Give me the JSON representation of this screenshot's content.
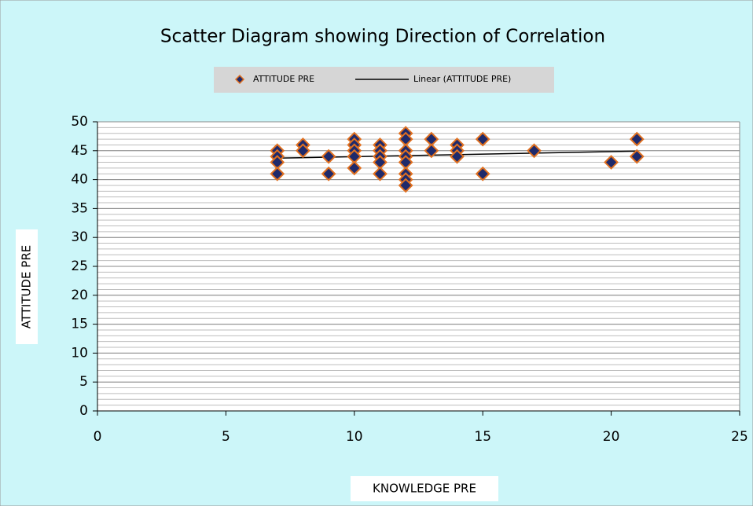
{
  "chart_data": {
    "type": "scatter",
    "title": "Scatter Diagram showing Direction of Correlation",
    "x_label": "KNOWLEDGE PRE",
    "y_label": "ATTITUDE PRE",
    "legend": "top",
    "grid": true,
    "minor_grid_step": 1,
    "xlim": [
      0,
      25
    ],
    "xticks": [
      0,
      5,
      10,
      15,
      20,
      25
    ],
    "ylim": [
      0,
      50
    ],
    "yticks": [
      0,
      5,
      10,
      15,
      20,
      25,
      30,
      35,
      40,
      45,
      50
    ],
    "series": [
      {
        "name": "ATTITUDE PRE",
        "color": "#1f2a6b",
        "edge_color": "#e07020",
        "x": [
          7,
          7,
          7,
          7,
          8,
          8,
          9,
          9,
          10,
          10,
          10,
          10,
          10,
          11,
          11,
          11,
          11,
          11,
          12,
          12,
          12,
          12,
          12,
          12,
          12,
          12,
          13,
          13,
          14,
          14,
          14,
          15,
          15,
          17,
          20,
          21,
          21
        ],
        "values": [
          45,
          44,
          43,
          41,
          46,
          45,
          44,
          41,
          47,
          46,
          45,
          44,
          42,
          46,
          45,
          44,
          43,
          41,
          48,
          47,
          45,
          44,
          43,
          41,
          40,
          39,
          47,
          45,
          46,
          45,
          44,
          47,
          41,
          45,
          43,
          47,
          44
        ]
      }
    ],
    "trendline": {
      "name": "Linear (ATTITUDE PRE)",
      "type": "linear",
      "color": "#000000"
    }
  }
}
